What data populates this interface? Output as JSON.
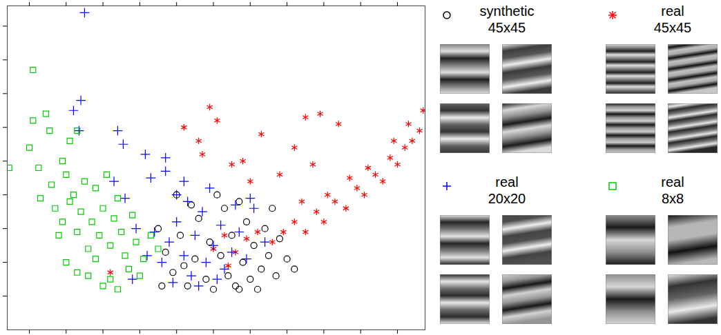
{
  "chart_data": {
    "type": "scatter",
    "xlim": [
      -0.6,
      10.75
    ],
    "xticks": [
      0,
      1,
      2,
      3,
      4,
      5,
      6,
      7,
      8,
      9,
      10
    ],
    "ylim": [
      -1,
      8.6
    ],
    "yticks": [
      0,
      1,
      2,
      3,
      4,
      5,
      6,
      7,
      8
    ],
    "tick_labels": false,
    "legend": "right",
    "series": [
      {
        "name": "synthetic 45x45",
        "color": "#000000",
        "marker": "circle",
        "values": [
          [
            3.7,
            1.3
          ],
          [
            3.9,
            0.7
          ],
          [
            4.1,
            1.8
          ],
          [
            4.3,
            0.3
          ],
          [
            4.5,
            1.1
          ],
          [
            4.6,
            2.3
          ],
          [
            4.8,
            0.5
          ],
          [
            4.9,
            1.6
          ],
          [
            5.0,
            0.2
          ],
          [
            5.2,
            1.2
          ],
          [
            5.3,
            2.6
          ],
          [
            5.4,
            0.6
          ],
          [
            5.5,
            1.8
          ],
          [
            5.6,
            0.3
          ],
          [
            5.8,
            1.0
          ],
          [
            5.9,
            2.2
          ],
          [
            6.0,
            0.5
          ],
          [
            6.1,
            1.5
          ],
          [
            6.3,
            0.8
          ],
          [
            6.4,
            2.0
          ],
          [
            6.5,
            1.2
          ],
          [
            6.7,
            0.6
          ],
          [
            6.8,
            1.7
          ],
          [
            7.0,
            1.1
          ],
          [
            4.0,
            3.0
          ],
          [
            4.4,
            2.7
          ],
          [
            5.1,
            3.0
          ],
          [
            5.7,
            2.8
          ],
          [
            6.6,
            2.6
          ],
          [
            3.5,
            2.0
          ],
          [
            4.2,
            0.9
          ],
          [
            5.7,
            0.2
          ],
          [
            6.2,
            0.2
          ],
          [
            7.2,
            0.8
          ],
          [
            3.6,
            0.3
          ]
        ]
      },
      {
        "name": "real 45x45",
        "color": "#ff0000",
        "marker": "asterisk",
        "values": [
          [
            4.2,
            5.0
          ],
          [
            4.6,
            4.6
          ],
          [
            4.9,
            5.6
          ],
          [
            5.1,
            5.2
          ],
          [
            4.7,
            4.2
          ],
          [
            5.5,
            3.9
          ],
          [
            5.8,
            4.0
          ],
          [
            6.3,
            4.8
          ],
          [
            6.0,
            3.4
          ],
          [
            7.5,
            5.3
          ],
          [
            7.9,
            5.4
          ],
          [
            8.4,
            5.1
          ],
          [
            7.2,
            4.4
          ],
          [
            6.8,
            3.6
          ],
          [
            7.7,
            3.9
          ],
          [
            5.0,
            1.4
          ],
          [
            5.3,
            1.8
          ],
          [
            5.6,
            1.3
          ],
          [
            5.9,
            1.7
          ],
          [
            5.4,
            0.9
          ],
          [
            6.2,
            1.9
          ],
          [
            6.6,
            1.6
          ],
          [
            6.9,
            1.9
          ],
          [
            7.2,
            2.2
          ],
          [
            7.5,
            1.9
          ],
          [
            7.8,
            2.5
          ],
          [
            8.0,
            2.2
          ],
          [
            8.3,
            2.8
          ],
          [
            8.6,
            2.6
          ],
          [
            8.9,
            3.2
          ],
          [
            9.1,
            3.0
          ],
          [
            9.4,
            3.6
          ],
          [
            9.6,
            3.4
          ],
          [
            9.8,
            4.1
          ],
          [
            10.0,
            3.9
          ],
          [
            10.2,
            4.4
          ],
          [
            10.4,
            4.6
          ],
          [
            10.6,
            4.9
          ],
          [
            10.7,
            5.5
          ],
          [
            9.2,
            3.8
          ],
          [
            8.7,
            3.5
          ],
          [
            8.1,
            3.0
          ],
          [
            7.4,
            2.8
          ],
          [
            10.3,
            5.1
          ],
          [
            9.9,
            4.6
          ],
          [
            2.2,
            0.7
          ]
        ]
      },
      {
        "name": "real 20x20",
        "color": "#0000ff",
        "marker": "plus",
        "values": [
          [
            1.5,
            8.4
          ],
          [
            1.4,
            5.8
          ],
          [
            1.2,
            5.5
          ],
          [
            1.35,
            4.9
          ],
          [
            2.4,
            4.9
          ],
          [
            2.55,
            4.5
          ],
          [
            3.15,
            4.2
          ],
          [
            3.7,
            4.1
          ],
          [
            3.7,
            3.7
          ],
          [
            4.2,
            3.4
          ],
          [
            4.0,
            3.0
          ],
          [
            3.3,
            3.5
          ],
          [
            3.6,
            1.0
          ],
          [
            3.8,
            1.6
          ],
          [
            4.0,
            2.2
          ],
          [
            4.2,
            1.2
          ],
          [
            4.4,
            0.6
          ],
          [
            4.5,
            1.8
          ],
          [
            4.7,
            2.5
          ],
          [
            4.8,
            1.0
          ],
          [
            5.0,
            1.5
          ],
          [
            5.2,
            2.1
          ],
          [
            5.3,
            0.8
          ],
          [
            5.5,
            1.3
          ],
          [
            5.7,
            1.9
          ],
          [
            5.9,
            1.1
          ],
          [
            6.1,
            2.6
          ],
          [
            4.3,
            2.8
          ],
          [
            3.9,
            0.4
          ],
          [
            4.6,
            0.3
          ],
          [
            5.1,
            0.5
          ],
          [
            3.4,
            1.9
          ],
          [
            3.2,
            1.2
          ],
          [
            2.9,
            2.0
          ],
          [
            2.6,
            2.9
          ],
          [
            2.3,
            3.4
          ],
          [
            6.4,
            1.6
          ],
          [
            6.0,
            2.9
          ],
          [
            5.6,
            2.7
          ],
          [
            2.8,
            0.5
          ],
          [
            4.9,
            3.2
          ]
        ]
      },
      {
        "name": "real 8x8",
        "color": "#00cc00",
        "marker": "square",
        "values": [
          [
            0.1,
            6.7
          ],
          [
            -0.55,
            3.8
          ],
          [
            0.25,
            3.8
          ],
          [
            0.1,
            5.2
          ],
          [
            0.55,
            4.9
          ],
          [
            0.45,
            5.4
          ],
          [
            0.0,
            4.4
          ],
          [
            1.1,
            4.6
          ],
          [
            1.3,
            4.9
          ],
          [
            0.9,
            4.0
          ],
          [
            1.0,
            3.6
          ],
          [
            0.6,
            3.3
          ],
          [
            0.3,
            2.9
          ],
          [
            0.7,
            2.6
          ],
          [
            0.8,
            1.8
          ],
          [
            1.0,
            1.0
          ],
          [
            1.3,
            0.7
          ],
          [
            1.6,
            0.6
          ],
          [
            2.0,
            0.3
          ],
          [
            2.2,
            0.5
          ],
          [
            1.2,
            3.0
          ],
          [
            1.5,
            3.4
          ],
          [
            1.8,
            3.2
          ],
          [
            1.4,
            2.5
          ],
          [
            1.7,
            2.2
          ],
          [
            2.0,
            2.6
          ],
          [
            2.3,
            2.3
          ],
          [
            1.9,
            1.8
          ],
          [
            2.2,
            1.5
          ],
          [
            2.5,
            1.9
          ],
          [
            2.6,
            1.2
          ],
          [
            2.9,
            1.6
          ],
          [
            3.1,
            1.1
          ],
          [
            3.3,
            1.8
          ],
          [
            2.8,
            2.4
          ],
          [
            2.4,
            2.9
          ],
          [
            2.1,
            3.6
          ],
          [
            1.6,
            1.4
          ],
          [
            1.3,
            1.9
          ],
          [
            3.0,
            0.6
          ],
          [
            3.5,
            1.4
          ],
          [
            2.7,
            0.8
          ],
          [
            1.8,
            1.1
          ],
          [
            0.9,
            2.2
          ],
          [
            1.1,
            2.8
          ],
          [
            2.4,
            0.2
          ]
        ]
      }
    ]
  }
}
